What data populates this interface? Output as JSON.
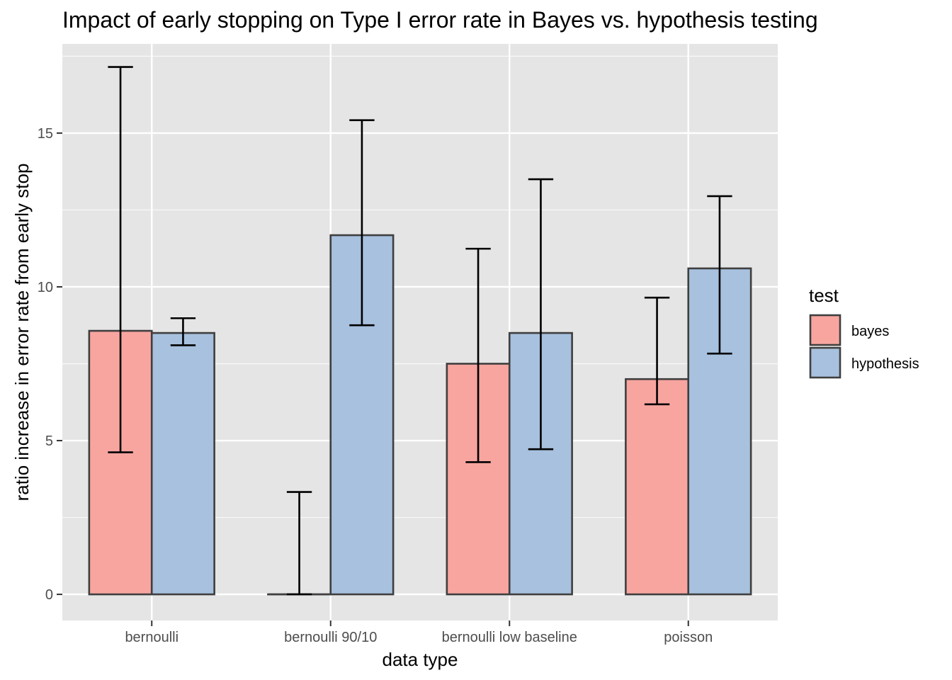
{
  "chart_data": {
    "type": "bar",
    "title": "Impact of early stopping on Type I error rate in Bayes vs. hypothesis testing",
    "xlabel": "data type",
    "ylabel": "ratio increase in error rate from early stop",
    "categories": [
      "bernoulli",
      "bernoulli 90/10",
      "bernoulli low baseline",
      "poisson"
    ],
    "series": [
      {
        "name": "bayes",
        "color": "#F8A5A0",
        "values": [
          8.57,
          0.0,
          7.5,
          7.0
        ],
        "error_low": [
          4.62,
          0.0,
          4.3,
          6.18
        ],
        "error_high": [
          17.15,
          3.33,
          11.24,
          9.65
        ]
      },
      {
        "name": "hypothesis",
        "color": "#A7C1DE",
        "values": [
          8.5,
          11.68,
          8.5,
          10.6
        ],
        "error_low": [
          8.1,
          8.75,
          4.72,
          7.83
        ],
        "error_high": [
          8.98,
          15.42,
          13.5,
          12.95
        ]
      }
    ],
    "ylim": [
      -0.85,
      17.9
    ],
    "yticks": [
      0,
      5,
      10,
      15
    ],
    "grid": true,
    "legend": {
      "title": "test",
      "position": "right"
    },
    "panel_background": "#E5E5E5",
    "bar_outline": "#3F3F3F"
  }
}
